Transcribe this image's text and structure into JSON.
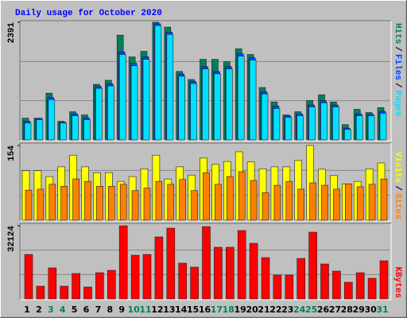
{
  "title": "Daily usage for October 2020",
  "legend_separator": "/",
  "chart_data": [
    {
      "type": "bar",
      "ylim": [
        0,
        2391
      ],
      "yticks": [
        2391
      ],
      "grid": true,
      "legend": "top",
      "series": [
        {
          "name": "Hits",
          "color": "#00805C",
          "values": [
            442,
            442,
            950,
            377,
            573,
            508,
            1130,
            1212,
            2129,
            1687,
            1801,
            2391,
            2293,
            1392,
            1228,
            1638,
            1638,
            1589,
            1851,
            1736,
            1065,
            770,
            508,
            573,
            802,
            917,
            770,
            311,
            622,
            557,
            655
          ]
        },
        {
          "name": "Files",
          "color": "#0040FF",
          "values": [
            380,
            440,
            860,
            360,
            530,
            450,
            1090,
            1140,
            1790,
            1560,
            1690,
            2360,
            2190,
            1340,
            1190,
            1490,
            1390,
            1490,
            1750,
            1670,
            980,
            690,
            490,
            530,
            710,
            800,
            710,
            240,
            530,
            520,
            580
          ]
        },
        {
          "name": "Pages",
          "color": "#00E0FF",
          "values": [
            344,
            409,
            819,
            344,
            491,
            409,
            1048,
            1097,
            1736,
            1507,
            1638,
            2325,
            2145,
            1294,
            1146,
            1441,
            1343,
            1441,
            1703,
            1621,
            933,
            639,
            459,
            491,
            671,
            753,
            671,
            213,
            491,
            491,
            540
          ]
        }
      ]
    },
    {
      "type": "bar",
      "ylim": [
        0,
        154
      ],
      "yticks": [
        154
      ],
      "grid": true,
      "legend": "bottom",
      "series": [
        {
          "name": "Visits",
          "color": "#FFFF00",
          "values": [
            102,
            102,
            90,
            110,
            134,
            110,
            98,
            98,
            80,
            90,
            106,
            134,
            85,
            110,
            93,
            128,
            115,
            121,
            141,
            120,
            106,
            110,
            110,
            123,
            154,
            105,
            92,
            75,
            80,
            106,
            118
          ]
        },
        {
          "name": "Sites",
          "color": "#FF8000",
          "values": [
            62,
            64,
            74,
            70,
            85,
            80,
            70,
            70,
            74,
            61,
            66,
            80,
            74,
            84,
            61,
            98,
            74,
            90,
            100,
            82,
            57,
            72,
            80,
            64,
            77,
            72,
            64,
            75,
            69,
            74,
            85
          ]
        }
      ]
    },
    {
      "type": "bar",
      "ylim": [
        0,
        32124
      ],
      "yticks": [
        32124
      ],
      "grid": true,
      "legend": "bottom",
      "categories": [
        "1",
        "2",
        "3",
        "4",
        "5",
        "6",
        "7",
        "8",
        "9",
        "10",
        "11",
        "12",
        "13",
        "14",
        "15",
        "16",
        "17",
        "18",
        "19",
        "20",
        "21",
        "22",
        "23",
        "24",
        "25",
        "26",
        "27",
        "28",
        "29",
        "30",
        "31"
      ],
      "highlight_categories": [
        2,
        3,
        9,
        10,
        16,
        17,
        23,
        24,
        30
      ],
      "highlight_color": "#00805C",
      "series": [
        {
          "name": "KBytes",
          "color": "#FF0000",
          "values": [
            19553,
            5587,
            13618,
            5587,
            11174,
            5238,
            11523,
            12571,
            32124,
            19205,
            19553,
            27236,
            31077,
            15713,
            13967,
            31775,
            22697,
            22697,
            30029,
            24442,
            18157,
            10475,
            10475,
            17808,
            29331,
            15364,
            12221,
            7333,
            11523,
            9079,
            16761
          ]
        }
      ]
    }
  ]
}
